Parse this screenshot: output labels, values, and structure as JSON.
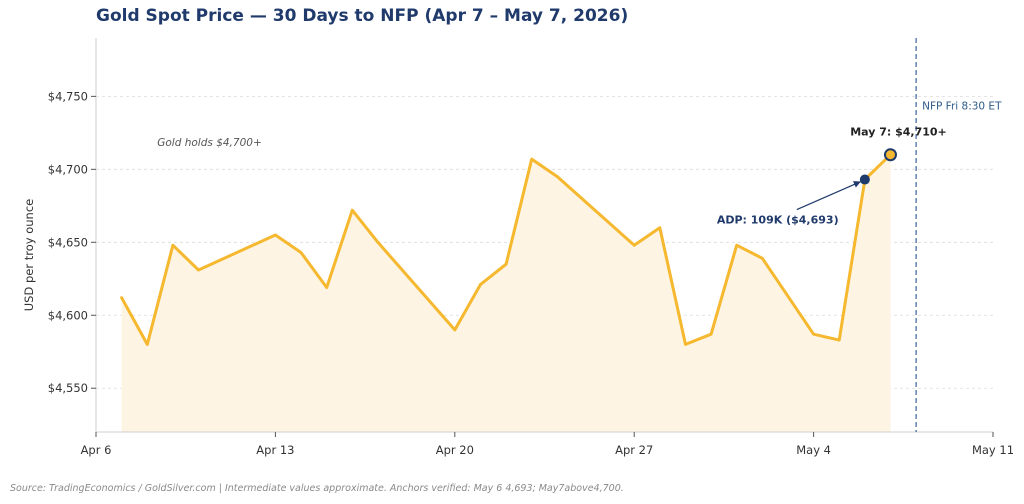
{
  "chart_data": {
    "type": "line",
    "title": "Gold Spot Price — 30 Days to NFP  (Apr 7 – May 7, 2026)",
    "ylabel": "USD per troy ounce",
    "xlabel": "",
    "ylim": [
      4520,
      4790
    ],
    "xlim": [
      "2026-04-06",
      "2026-05-11"
    ],
    "x_ticks": [
      {
        "date": "2026-04-06",
        "label": "Apr 6"
      },
      {
        "date": "2026-04-13",
        "label": "Apr 13"
      },
      {
        "date": "2026-04-20",
        "label": "Apr 20"
      },
      {
        "date": "2026-04-27",
        "label": "Apr 27"
      },
      {
        "date": "2026-05-04",
        "label": "May 4"
      },
      {
        "date": "2026-05-11",
        "label": "May 11"
      }
    ],
    "y_ticks": [
      {
        "value": 4550,
        "label": "$4,550"
      },
      {
        "value": 4600,
        "label": "$4,600"
      },
      {
        "value": 4650,
        "label": "$4,650"
      },
      {
        "value": 4700,
        "label": "$4,700"
      },
      {
        "value": 4750,
        "label": "$4,750"
      }
    ],
    "grid": true,
    "color": "#f5b82e",
    "fill_color": "#fdf4e3",
    "series": [
      {
        "points": [
          {
            "x": "2026-04-07",
            "y": 4612
          },
          {
            "x": "2026-04-08",
            "y": 4580
          },
          {
            "x": "2026-04-09",
            "y": 4648
          },
          {
            "x": "2026-04-10",
            "y": 4631
          },
          {
            "x": "2026-04-13",
            "y": 4655
          },
          {
            "x": "2026-04-14",
            "y": 4643
          },
          {
            "x": "2026-04-15",
            "y": 4619
          },
          {
            "x": "2026-04-16",
            "y": 4672
          },
          {
            "x": "2026-04-17",
            "y": 4650
          },
          {
            "x": "2026-04-20",
            "y": 4590
          },
          {
            "x": "2026-04-21",
            "y": 4621
          },
          {
            "x": "2026-04-22",
            "y": 4635
          },
          {
            "x": "2026-04-23",
            "y": 4707
          },
          {
            "x": "2026-04-24",
            "y": 4695
          },
          {
            "x": "2026-04-27",
            "y": 4648
          },
          {
            "x": "2026-04-28",
            "y": 4660
          },
          {
            "x": "2026-04-29",
            "y": 4580
          },
          {
            "x": "2026-04-30",
            "y": 4587
          },
          {
            "x": "2026-05-01",
            "y": 4648
          },
          {
            "x": "2026-05-02",
            "y": 4639
          },
          {
            "x": "2026-05-04",
            "y": 4587
          },
          {
            "x": "2026-05-05",
            "y": 4583
          },
          {
            "x": "2026-05-06",
            "y": 4693
          },
          {
            "x": "2026-05-07",
            "y": 4710
          }
        ]
      }
    ],
    "nfp_line": {
      "x": "2026-05-08",
      "label": "NFP  Fri 8:30 ET",
      "color": "#4a6fa5"
    },
    "annotations": {
      "note": {
        "text": "Gold holds $4,700+",
        "x": "2026-04-08",
        "y": 4716
      },
      "adp": {
        "text": "ADP: 109K  ($4,693)",
        "x": "2026-05-06",
        "y": 4693,
        "color": "#1f3a6b"
      },
      "last": {
        "text": "May 7: $4,710+",
        "x": "2026-05-07",
        "y": 4710
      }
    }
  },
  "footer": "Source: TradingEconomics / GoldSilver.com  |  Intermediate values approximate. Anchors verified: May 6 4,693; May7above4,700."
}
